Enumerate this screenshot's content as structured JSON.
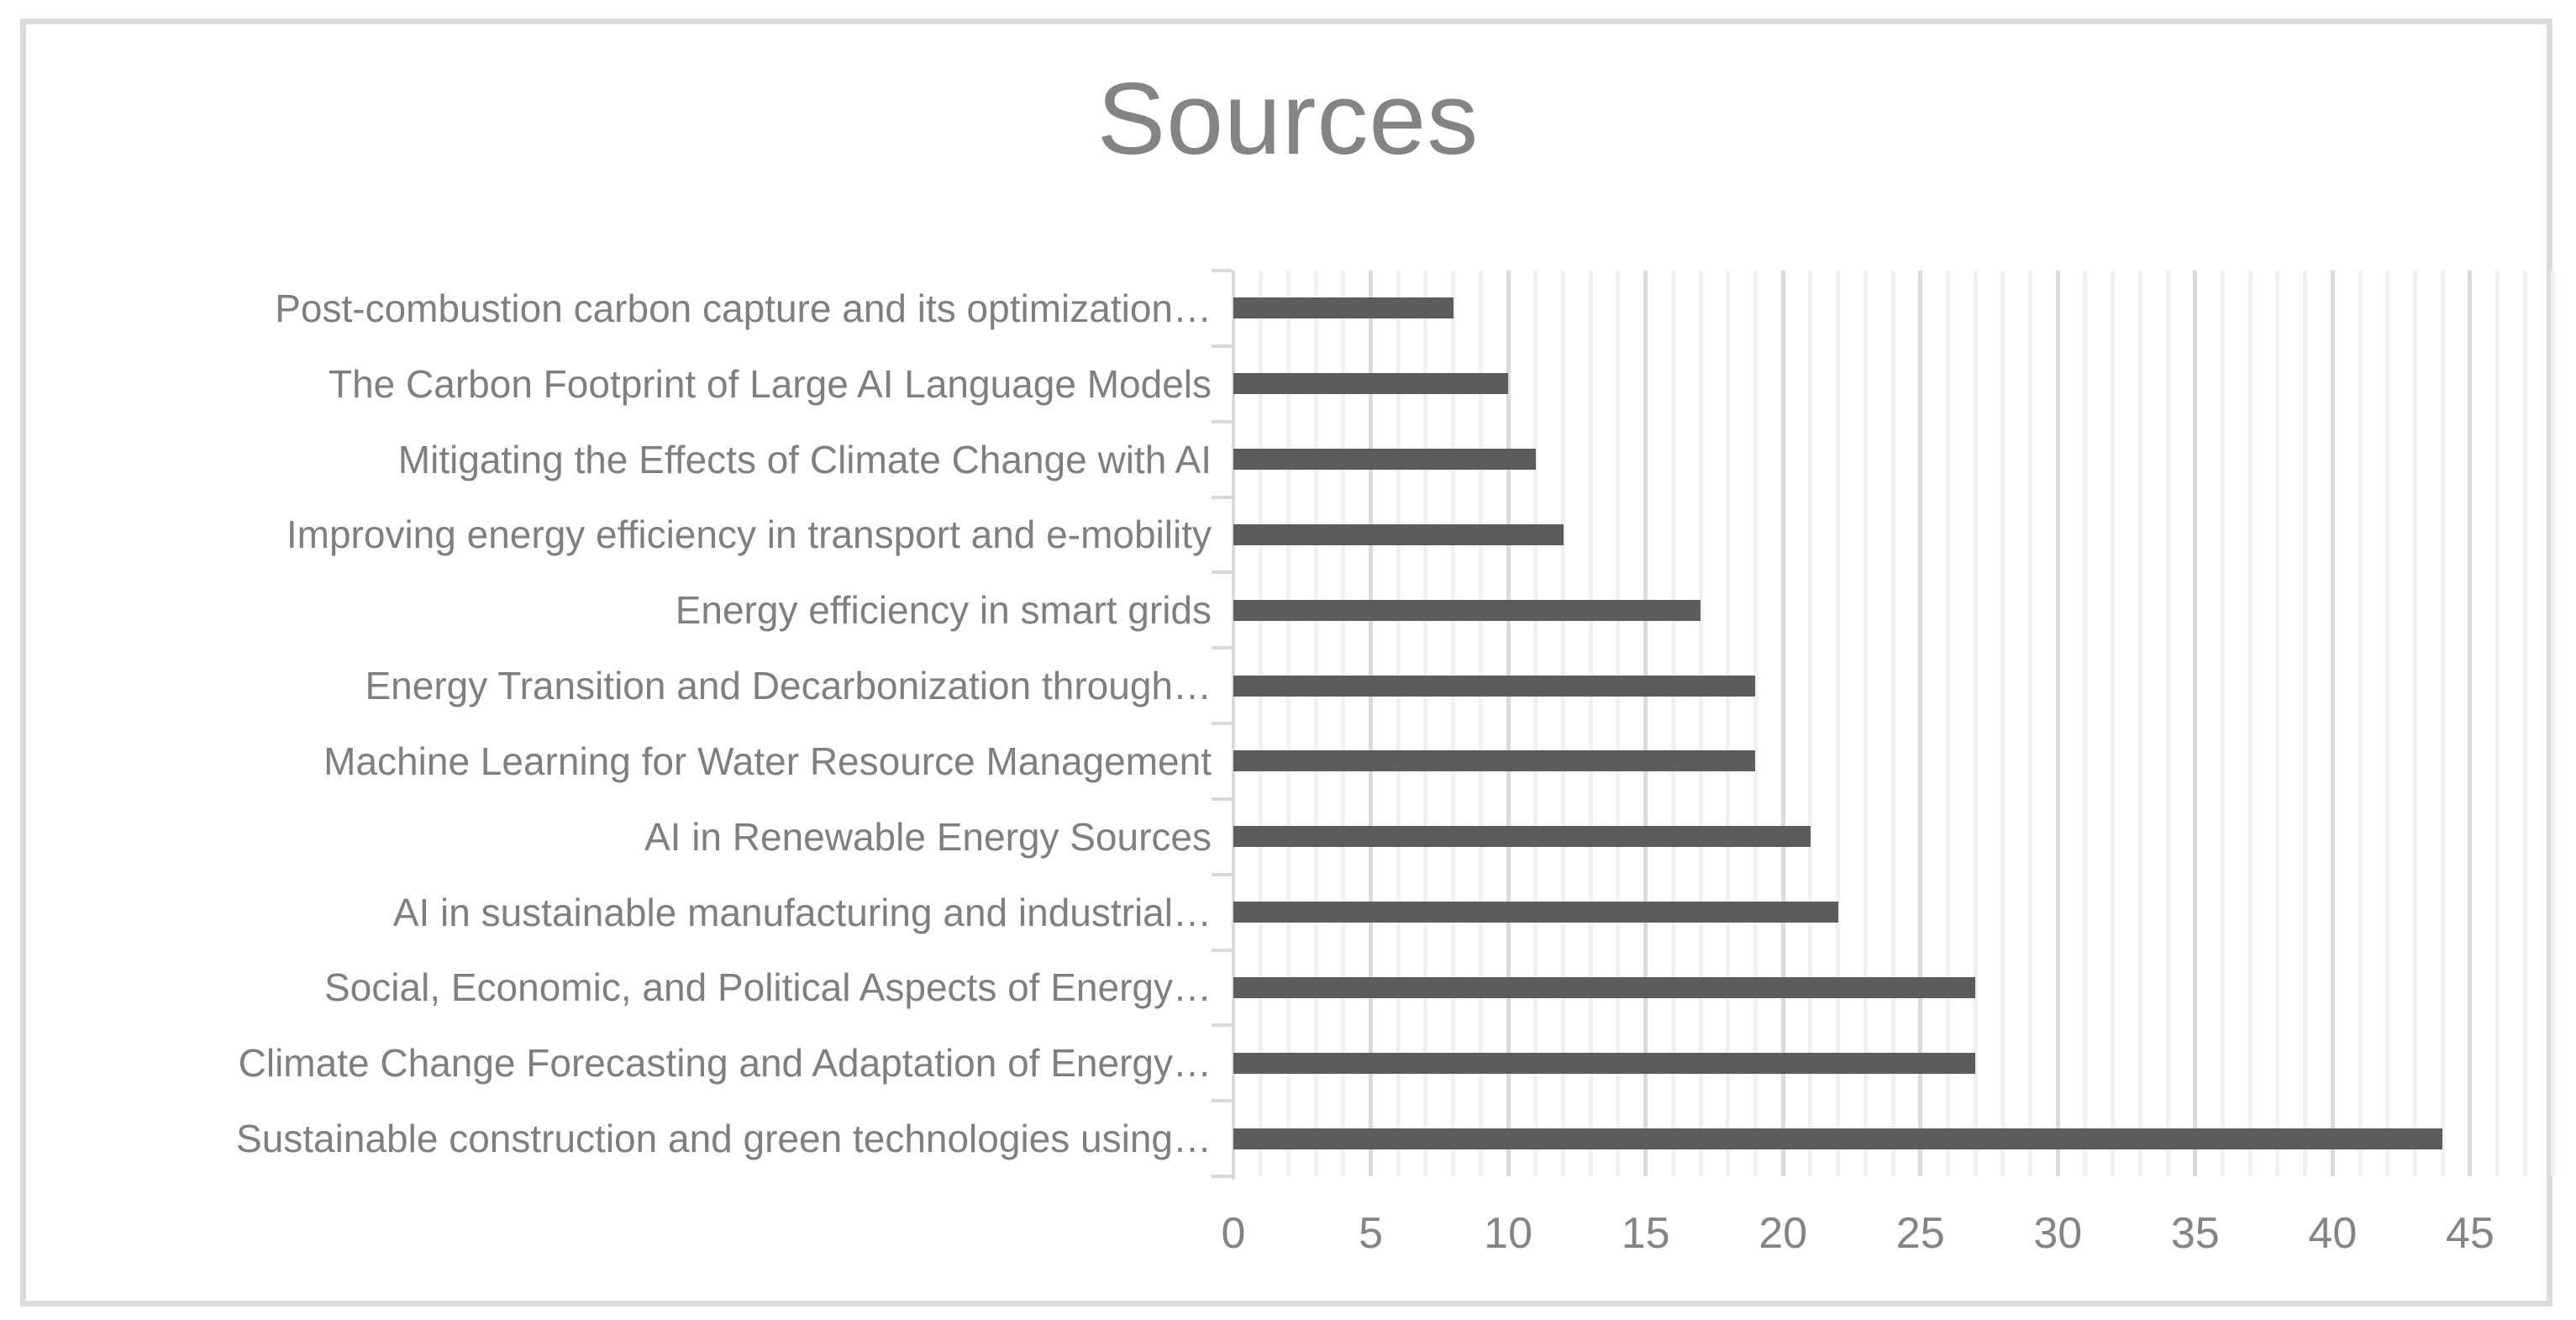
{
  "chart_data": {
    "type": "bar",
    "orientation": "horizontal",
    "title": "Sources",
    "categories": [
      "Post-combustion carbon capture and its optimization…",
      "The Carbon Footprint of Large AI Language Models",
      "Mitigating the Effects of Climate Change with AI",
      "Improving energy efficiency in transport and e-mobility",
      "Energy efficiency in smart grids",
      "Energy Transition and Decarbonization through…",
      "Machine Learning for Water Resource Management",
      "AI in Renewable Energy Sources",
      "AI in sustainable manufacturing and industrial…",
      "Social, Economic, and Political Aspects of Energy…",
      "Climate Change Forecasting and Adaptation of Energy…",
      "Sustainable construction and green technologies using…"
    ],
    "values": [
      8,
      10,
      11,
      12,
      17,
      19,
      19,
      21,
      22,
      27,
      27,
      44
    ],
    "xlabel": "",
    "ylabel": "",
    "xlim": [
      0,
      48
    ],
    "x_ticks": [
      0,
      5,
      10,
      15,
      20,
      25,
      30,
      35,
      40,
      45
    ],
    "x_minor_unit": 1,
    "x_major_unit": 5,
    "grid": "vertical, minor every 1 unit, major every 5 units",
    "legend": "none"
  },
  "colors": {
    "bar": "#5c5c5c",
    "title_text": "#848484",
    "axis_text": "#7f7f7f",
    "grid_minor": "#f1f1f1",
    "grid_major": "#dbdbdb",
    "axis_line": "#d9d9d9",
    "frame_border": "#dbdbdb",
    "background": "#ffffff"
  }
}
